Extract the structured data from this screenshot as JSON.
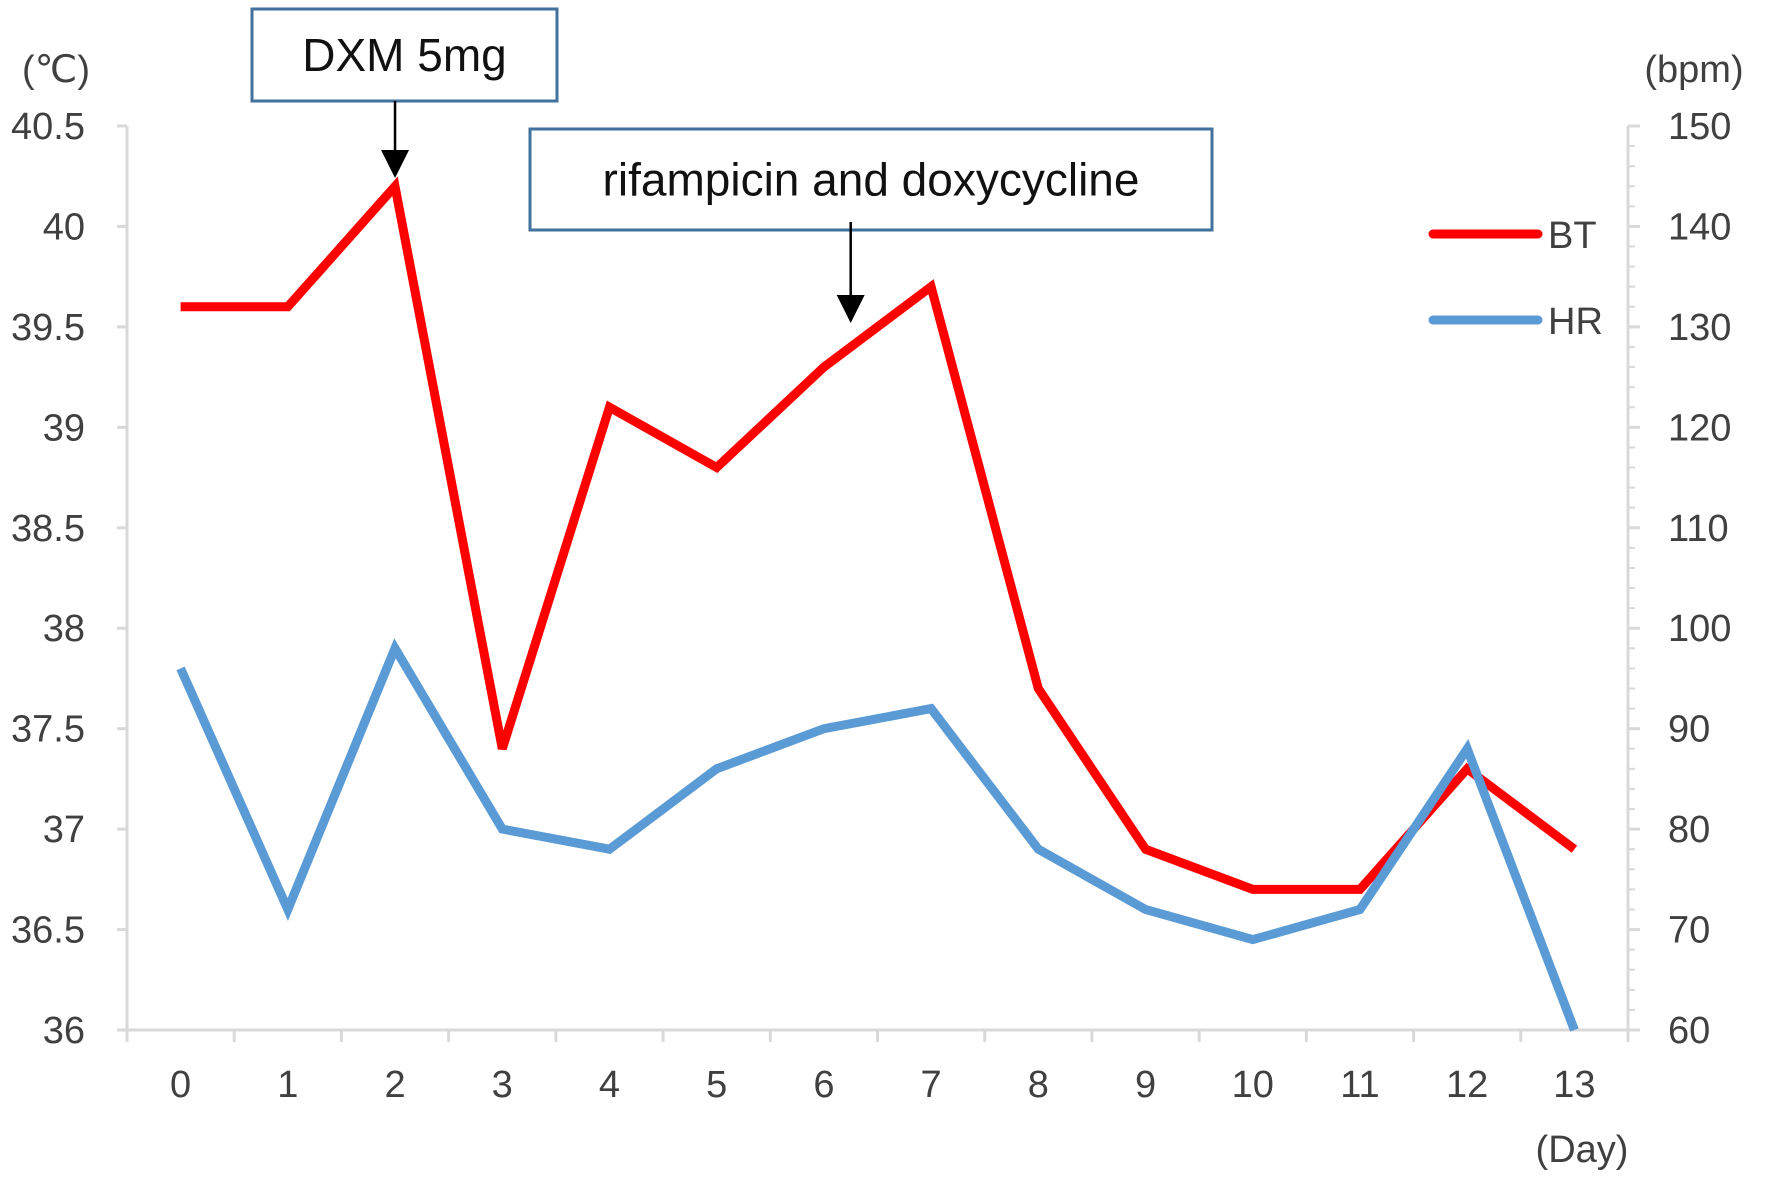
{
  "chart_data": {
    "type": "line",
    "x": [
      0,
      1,
      2,
      3,
      4,
      5,
      6,
      7,
      8,
      9,
      10,
      11,
      12,
      13
    ],
    "xlabel": "(Day)",
    "ylabel_left": "(℃)",
    "ylabel_right": "(bpm)",
    "ylim_left": [
      36,
      40.5
    ],
    "ylim_right": [
      60,
      150
    ],
    "yticks_left": [
      "40.5",
      "40",
      "39.5",
      "39",
      "38.5",
      "38",
      "37.5",
      "37",
      "36.5",
      "36"
    ],
    "yticks_right": [
      "150",
      "140",
      "130",
      "120",
      "110",
      "100",
      "90",
      "80",
      "70",
      "60"
    ],
    "series": [
      {
        "name": "BT",
        "axis": "left",
        "color": "#ff0000",
        "values": [
          39.6,
          39.6,
          40.2,
          37.4,
          39.1,
          38.8,
          39.3,
          39.7,
          37.7,
          36.9,
          36.7,
          36.7,
          37.3,
          36.9
        ]
      },
      {
        "name": "HR",
        "axis": "right",
        "color": "#5b9bd5",
        "values": [
          96,
          72,
          98,
          80,
          78,
          86,
          90,
          92,
          78,
          72,
          69,
          72,
          88,
          60
        ]
      }
    ],
    "annotations": [
      {
        "text": "DXM 5mg",
        "x": 2
      },
      {
        "text": "rifampicin and doxycycline",
        "x": 6.25
      }
    ],
    "legend_position": "right",
    "grid": false
  }
}
